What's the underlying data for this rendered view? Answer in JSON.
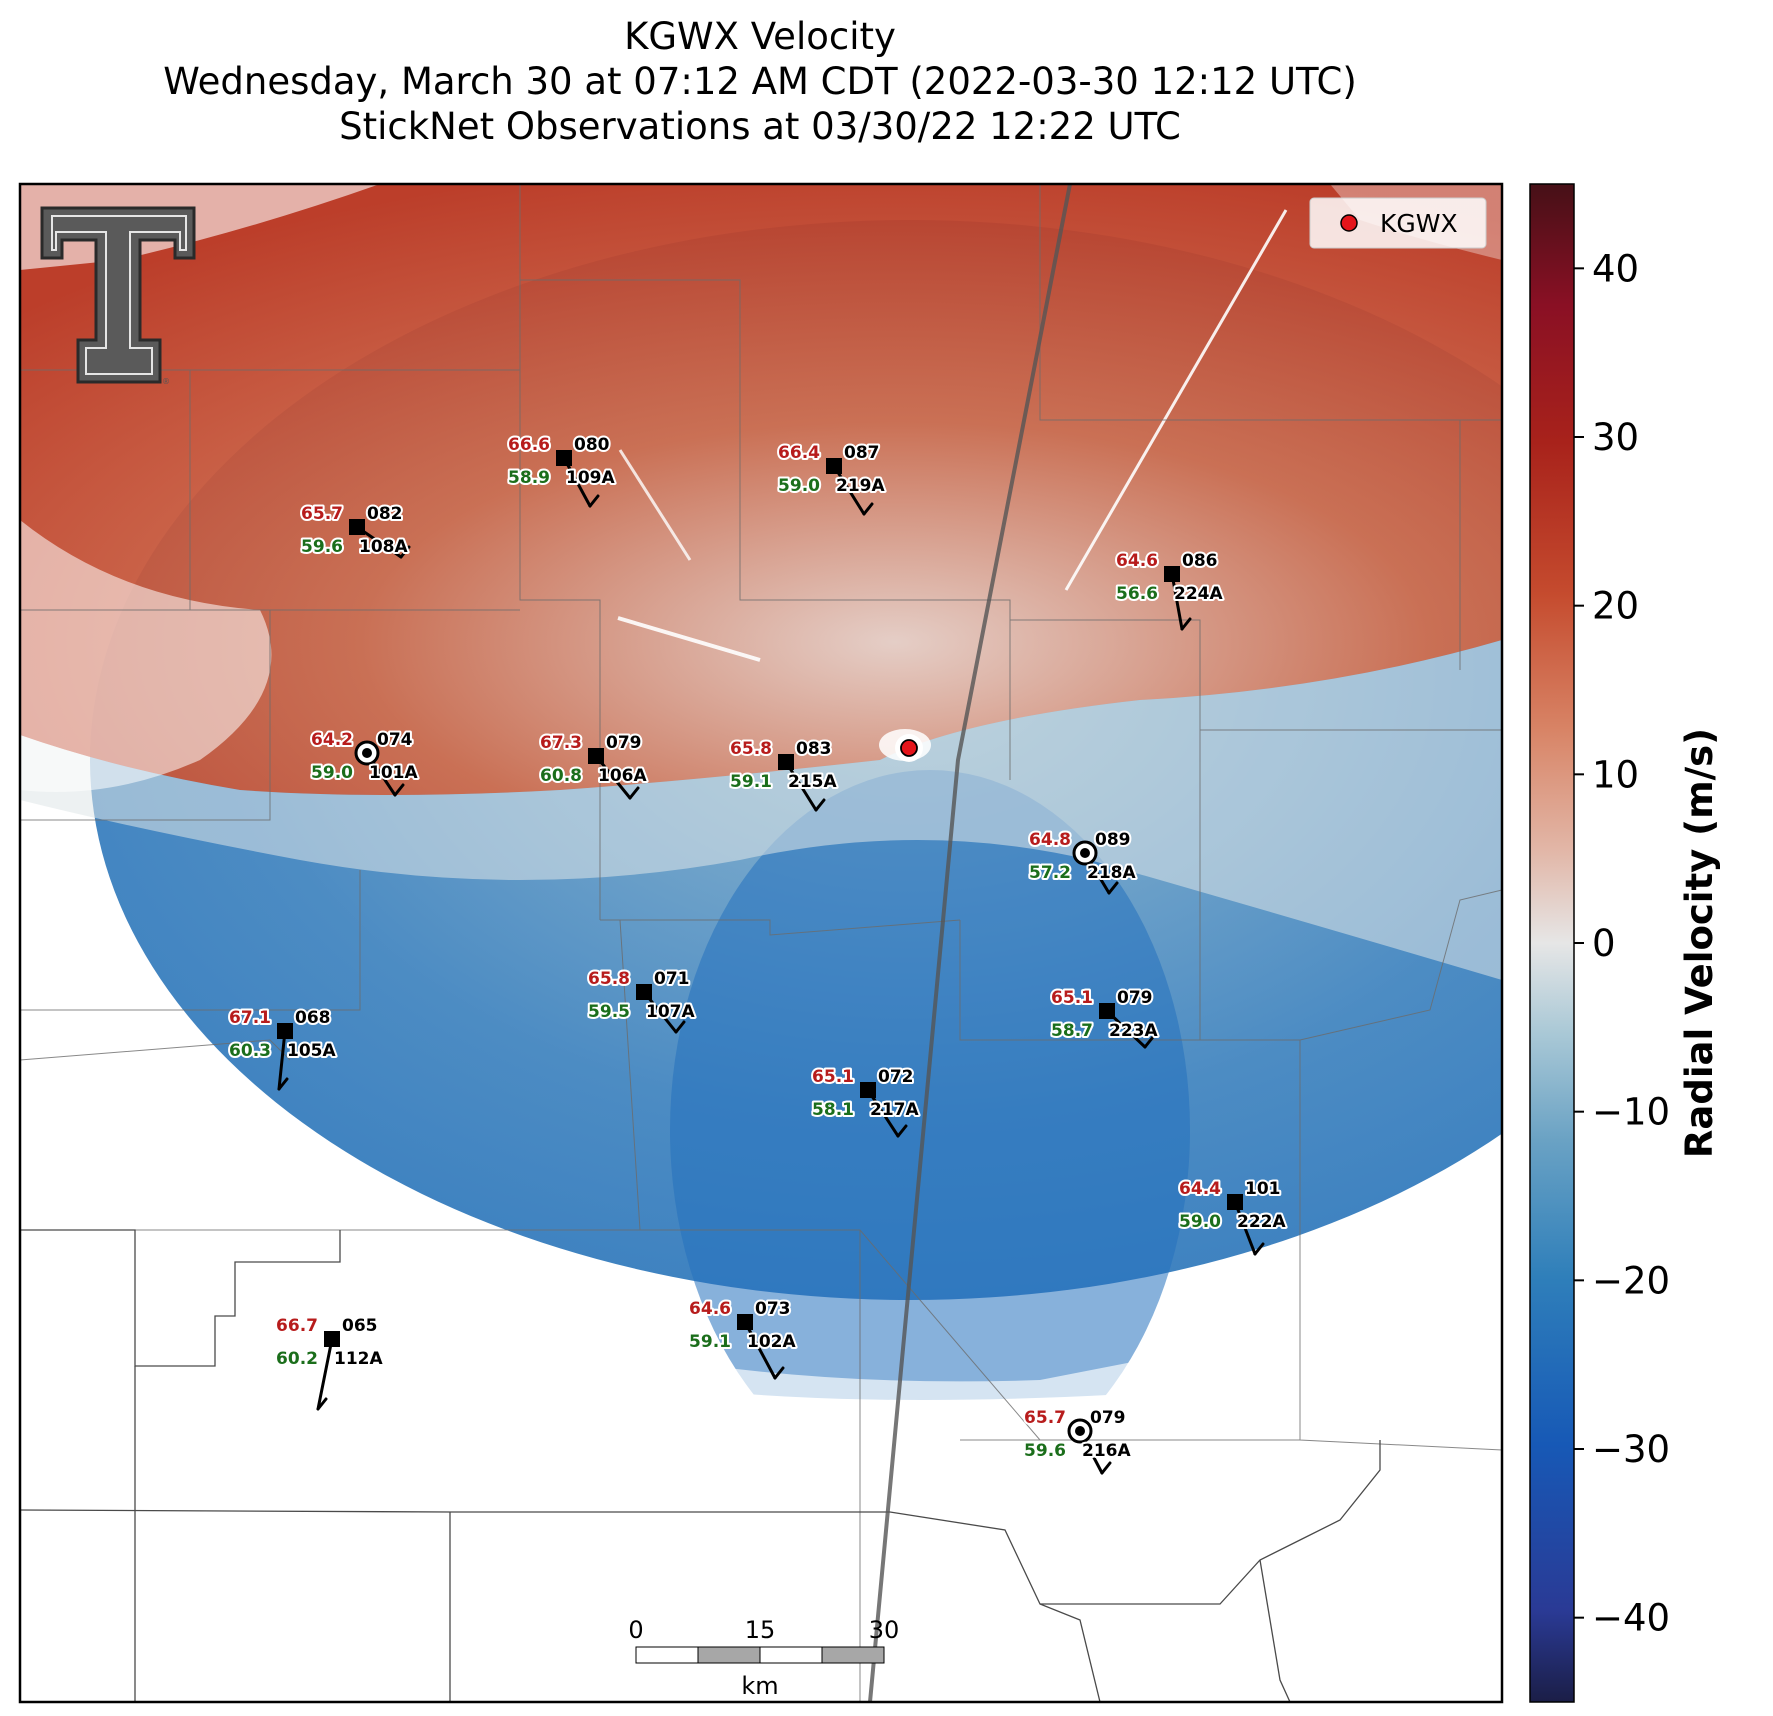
{
  "title": {
    "line1": "KGWX Velocity",
    "line2": "Wednesday, March 30 at 07:12 AM CDT (2022-03-30 12:12 UTC)",
    "line3": "StickNet Observations at 03/30/22 12:22 UTC"
  },
  "legend": {
    "label": "KGWX",
    "marker_color": "#e4151b"
  },
  "colorbar": {
    "label": "Radial Velocity (m/s)",
    "ticks": [
      "40",
      "30",
      "20",
      "10",
      "0",
      "−10",
      "−20",
      "−30",
      "−40"
    ],
    "tick_values": [
      40,
      30,
      20,
      10,
      0,
      -10,
      -20,
      -30,
      -40
    ],
    "range": [
      -45,
      45
    ],
    "colors": [
      "#1b1e47",
      "#2a3a95",
      "#1759b6",
      "#2f7fba",
      "#6aa2c4",
      "#a9c8d6",
      "#e6e6e6",
      "#e2b7a8",
      "#d88466",
      "#c54b2e",
      "#a8221b",
      "#8a1024",
      "#461017"
    ]
  },
  "scale_bar": {
    "labels": [
      "0",
      "15",
      "30"
    ],
    "unit": "km"
  },
  "logo": {
    "name": "texas-tech-logo"
  },
  "stations": [
    {
      "temp": "66.6",
      "dew": "58.9",
      "dir": "080",
      "id": "109A",
      "marker": "square"
    },
    {
      "temp": "66.4",
      "dew": "59.0",
      "dir": "087",
      "id": "219A",
      "marker": "square"
    },
    {
      "temp": "65.7",
      "dew": "59.6",
      "dir": "082",
      "id": "108A",
      "marker": "square"
    },
    {
      "temp": "64.6",
      "dew": "56.6",
      "dir": "086",
      "id": "224A",
      "marker": "square"
    },
    {
      "temp": "64.2",
      "dew": "59.0",
      "dir": "074",
      "id": "101A",
      "marker": "circle"
    },
    {
      "temp": "67.3",
      "dew": "60.8",
      "dir": "079",
      "id": "106A",
      "marker": "square"
    },
    {
      "temp": "65.8",
      "dew": "59.1",
      "dir": "083",
      "id": "215A",
      "marker": "square"
    },
    {
      "temp": "64.8",
      "dew": "57.2",
      "dir": "089",
      "id": "218A",
      "marker": "circle"
    },
    {
      "temp": "65.8",
      "dew": "59.5",
      "dir": "071",
      "id": "107A",
      "marker": "square"
    },
    {
      "temp": "67.1",
      "dew": "60.3",
      "dir": "068",
      "id": "105A",
      "marker": "square"
    },
    {
      "temp": "65.1",
      "dew": "58.7",
      "dir": "079",
      "id": "223A",
      "marker": "square"
    },
    {
      "temp": "65.1",
      "dew": "58.1",
      "dir": "072",
      "id": "217A",
      "marker": "square"
    },
    {
      "temp": "64.4",
      "dew": "59.0",
      "dir": "101",
      "id": "222A",
      "marker": "square"
    },
    {
      "temp": "66.7",
      "dew": "60.2",
      "dir": "065",
      "id": "112A",
      "marker": "square"
    },
    {
      "temp": "64.6",
      "dew": "59.1",
      "dir": "073",
      "id": "102A",
      "marker": "square"
    },
    {
      "temp": "65.7",
      "dew": "59.6",
      "dir": "079",
      "id": "216A",
      "marker": "circle"
    }
  ]
}
